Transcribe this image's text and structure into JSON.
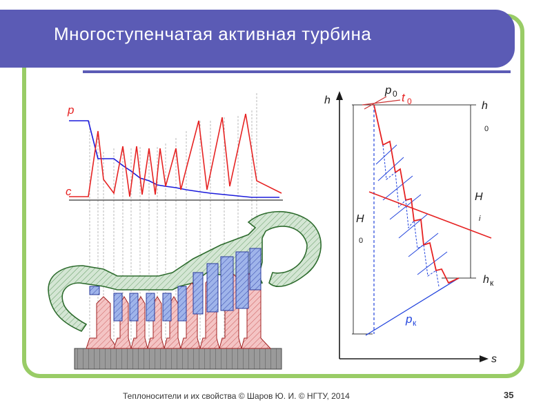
{
  "slide": {
    "title": "Многоступенчатая активная турбина",
    "footer": "Теплоносители и их свойства © Шаров Ю. И. © НГТУ, 2014",
    "page_number": "35"
  },
  "left_chart": {
    "p_label": "p",
    "c_label": "c"
  },
  "hs_diagram": {
    "h_axis": "h",
    "s_axis": "s",
    "p0": "p",
    "p0_sub": "0",
    "t0": "t",
    "t0_sub": "0",
    "h0": "h",
    "h0_sub": "0",
    "H0": "H",
    "H0_sub": "0",
    "Hi": "H",
    "Hi_sub": "i",
    "hk": "h",
    "hk_sub": "к",
    "pk": "p",
    "pk_sub": "к"
  },
  "colors": {
    "frame": "#99cc66",
    "title_bg": "#5b5bb5",
    "pressure_line": "#0000dd",
    "velocity_line": "#ee2222",
    "casing": "#c8dcc8",
    "blades": "#8fa8e0",
    "rotor": "#f0b8b8"
  }
}
